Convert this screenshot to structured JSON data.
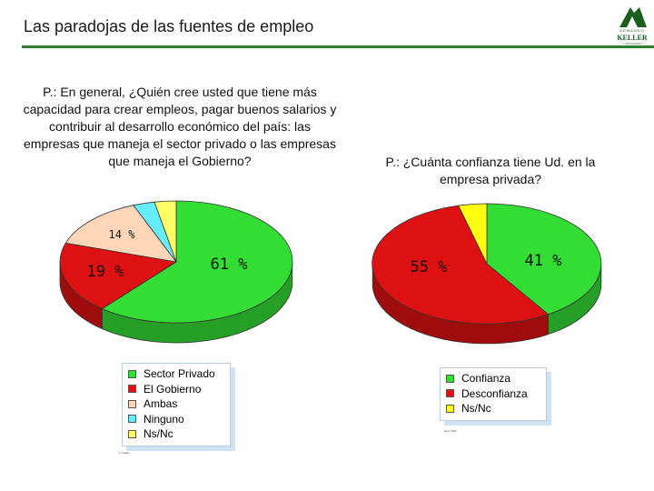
{
  "header": {
    "title": "Las paradojas de las fuentes de empleo",
    "logo_top": "ARMANDO",
    "logo_name": "KELLER",
    "logo_sub": "Y ASOCIADOS"
  },
  "colors": {
    "green": "#33dd33",
    "red": "#dd1111",
    "peach": "#ffd6b8",
    "cyan": "#66eeff",
    "yellow": "#ffff11",
    "accent": "#2e7d32"
  },
  "chart_data": [
    {
      "type": "pie",
      "question": "P.: En general, ¿Quién cree usted que tiene más capacidad para crear empleos, pagar buenos salarios y contribuir al desarrollo económico del país: las empresas que maneja el sector privado o las empresas que maneja el Gobierno?",
      "slices": [
        {
          "name": "Sector Privado",
          "value": 61,
          "label": "61 %",
          "color": "#33dd33"
        },
        {
          "name": "El Gobierno",
          "value": 19,
          "label": "19 %",
          "color": "#dd1111"
        },
        {
          "name": "Ambas",
          "value": 14,
          "label": "14 %",
          "color": "#ffd6b8"
        },
        {
          "name": "Ninguno",
          "value": 3,
          "label": "",
          "color": "#66eeff"
        },
        {
          "name": "Ns/Nc",
          "value": 3,
          "label": "",
          "color": "#ffff66"
        }
      ],
      "legend": "bottom",
      "source": "A. Keller"
    },
    {
      "type": "pie",
      "question": "P.: ¿Cuánta confianza tiene Ud. en la empresa privada?",
      "slices": [
        {
          "name": "Confianza",
          "value": 41,
          "label": "41 %",
          "color": "#33dd33"
        },
        {
          "name": "Desconfianza",
          "value": 55,
          "label": "55 %",
          "color": "#dd1111"
        },
        {
          "name": "Ns/Nc",
          "value": 4,
          "label": "",
          "color": "#ffff11"
        }
      ],
      "legend": "bottom",
      "source": "Dec. 2001"
    }
  ]
}
